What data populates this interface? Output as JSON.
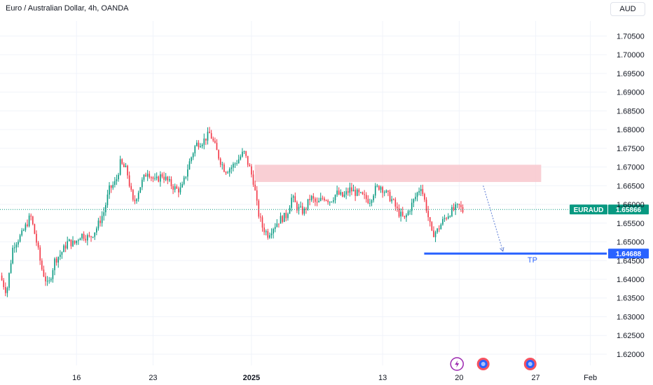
{
  "header": {
    "symbol_title": "Euro / Australian Dollar, 4h, OANDA",
    "currency_button": "AUD"
  },
  "colors": {
    "up": "#089981",
    "down": "#f23645",
    "zone": "#f8c7cc",
    "tp_line": "#2962ff",
    "current_price": "#089981",
    "projection": "#5b7bd5",
    "grid": "#f0f3fa",
    "axis_text": "#131722"
  },
  "chart_data": {
    "type": "candlestick",
    "title": "Euro / Australian Dollar, 4h, OANDA",
    "ylim": [
      1.617,
      1.709
    ],
    "y_ticks": [
      "1.70500",
      "1.70000",
      "1.69500",
      "1.69000",
      "1.68500",
      "1.68000",
      "1.67500",
      "1.67000",
      "1.66500",
      "1.66000",
      "1.65500",
      "1.65000",
      "1.64500",
      "1.64000",
      "1.63500",
      "1.63000",
      "1.62500",
      "1.62000"
    ],
    "x_axis": {
      "unit": "day",
      "origin_date": "2024-12-09",
      "range": [
        0,
        55.5
      ],
      "ticks": [
        {
          "label": "16",
          "day": 7,
          "bold": false
        },
        {
          "label": "23",
          "day": 14,
          "bold": false
        },
        {
          "label": "2025",
          "day": 23,
          "bold": true
        },
        {
          "label": "13",
          "day": 35,
          "bold": false
        },
        {
          "label": "20",
          "day": 42,
          "bold": false
        },
        {
          "label": "27",
          "day": 49,
          "bold": false
        },
        {
          "label": "Feb",
          "day": 54,
          "bold": false
        }
      ]
    },
    "price_path": [
      [
        0.0,
        1.641
      ],
      [
        0.6,
        1.6365
      ],
      [
        1.2,
        1.649
      ],
      [
        2.0,
        1.652
      ],
      [
        2.8,
        1.657
      ],
      [
        3.3,
        1.6505
      ],
      [
        3.8,
        1.643
      ],
      [
        4.4,
        1.638
      ],
      [
        5.0,
        1.645
      ],
      [
        5.6,
        1.647
      ],
      [
        6.2,
        1.65
      ],
      [
        6.8,
        1.6495
      ],
      [
        7.4,
        1.652
      ],
      [
        8.2,
        1.651
      ],
      [
        8.8,
        1.6535
      ],
      [
        9.5,
        1.658
      ],
      [
        10.0,
        1.664
      ],
      [
        10.6,
        1.666
      ],
      [
        11.0,
        1.671
      ],
      [
        11.6,
        1.669
      ],
      [
        12.2,
        1.66
      ],
      [
        12.9,
        1.6655
      ],
      [
        13.5,
        1.669
      ],
      [
        14.2,
        1.666
      ],
      [
        14.8,
        1.668
      ],
      [
        15.4,
        1.666
      ],
      [
        16.1,
        1.664
      ],
      [
        16.6,
        1.664
      ],
      [
        17.3,
        1.671
      ],
      [
        17.9,
        1.676
      ],
      [
        18.6,
        1.677
      ],
      [
        19.2,
        1.679
      ],
      [
        19.6,
        1.676
      ],
      [
        20.1,
        1.672
      ],
      [
        20.6,
        1.669
      ],
      [
        21.2,
        1.67
      ],
      [
        21.8,
        1.672
      ],
      [
        22.3,
        1.674
      ],
      [
        22.8,
        1.67
      ],
      [
        23.2,
        1.666
      ],
      [
        23.6,
        1.658
      ],
      [
        24.0,
        1.654
      ],
      [
        24.5,
        1.652
      ],
      [
        25.0,
        1.654
      ],
      [
        25.6,
        1.656
      ],
      [
        26.2,
        1.657
      ],
      [
        26.7,
        1.662
      ],
      [
        27.2,
        1.659
      ],
      [
        27.8,
        1.658
      ],
      [
        28.4,
        1.662
      ],
      [
        29.0,
        1.66
      ],
      [
        29.6,
        1.662
      ],
      [
        30.2,
        1.661
      ],
      [
        30.8,
        1.663
      ],
      [
        31.4,
        1.662
      ],
      [
        32.0,
        1.664
      ],
      [
        32.6,
        1.663
      ],
      [
        33.2,
        1.662
      ],
      [
        33.8,
        1.661
      ],
      [
        34.3,
        1.664
      ],
      [
        34.8,
        1.665
      ],
      [
        35.3,
        1.663
      ],
      [
        35.9,
        1.661
      ],
      [
        36.4,
        1.658
      ],
      [
        37.0,
        1.656
      ],
      [
        37.5,
        1.659
      ],
      [
        38.0,
        1.662
      ],
      [
        38.5,
        1.665
      ],
      [
        39.0,
        1.659
      ],
      [
        39.5,
        1.652
      ],
      [
        40.0,
        1.653
      ],
      [
        40.6,
        1.656
      ],
      [
        41.2,
        1.658
      ],
      [
        41.7,
        1.659
      ],
      [
        42.0,
        1.6595
      ],
      [
        42.4,
        1.658
      ]
    ],
    "current_price": {
      "label": "EURAUD",
      "value": "1.65866",
      "price": 1.65866
    },
    "resistance_zone": {
      "day_start": 23.3,
      "day_end": 49.5,
      "price_low": 1.666,
      "price_high": 1.6706
    },
    "projection": {
      "from": [
        44.2,
        1.665
      ],
      "to": [
        46.0,
        1.6475
      ]
    },
    "take_profit": {
      "label": "TP",
      "price_tag": "1.64688",
      "price": 1.64688,
      "day_start": 38.8
    },
    "event_icons": [
      {
        "name": "lightning-event",
        "day": 41.8
      },
      {
        "name": "flag-event",
        "day": 44.2
      },
      {
        "name": "flag-event",
        "day": 48.5
      }
    ]
  }
}
